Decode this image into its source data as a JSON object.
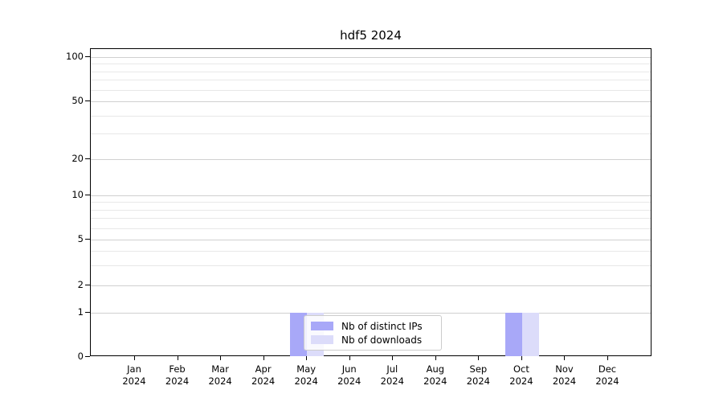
{
  "chart_data": {
    "type": "bar",
    "title": "hdf5 2024",
    "categories": [
      "Jan 2024",
      "Feb 2024",
      "Mar 2024",
      "Apr 2024",
      "May 2024",
      "Jun 2024",
      "Jul 2024",
      "Aug 2024",
      "Sep 2024",
      "Oct 2024",
      "Nov 2024",
      "Dec 2024"
    ],
    "series": [
      {
        "name": "Nb of distinct IPs",
        "color": "#a8a8f8",
        "values": [
          0,
          0,
          0,
          0,
          1,
          0,
          0,
          0,
          0,
          1,
          0,
          0
        ]
      },
      {
        "name": "Nb of downloads",
        "color": "#dcdcfa",
        "values": [
          0,
          0,
          0,
          0,
          1,
          0,
          0,
          0,
          0,
          1,
          0,
          0
        ]
      }
    ],
    "yaxis": {
      "scale": "log-like",
      "ticks": [
        100,
        50,
        20,
        10,
        5,
        2,
        1,
        0
      ],
      "minor_gridlines": [
        3,
        4,
        6,
        7,
        8,
        9,
        30,
        40,
        60,
        70,
        80,
        90
      ],
      "range": [
        0,
        100
      ]
    },
    "xaxis": {
      "label_lines": 2
    },
    "grid": "horizontal",
    "legend": {
      "position": "lower center-left, inside plot",
      "entries": [
        "Nb of distinct IPs",
        "Nb of downloads"
      ]
    },
    "colors": {
      "distinct_ips": "#a8a8f8",
      "downloads": "#dcdcfa",
      "grid_major": "#d0d0d0",
      "grid_minor": "#e8e8e8",
      "axis": "#000000",
      "background": "#ffffff"
    }
  }
}
